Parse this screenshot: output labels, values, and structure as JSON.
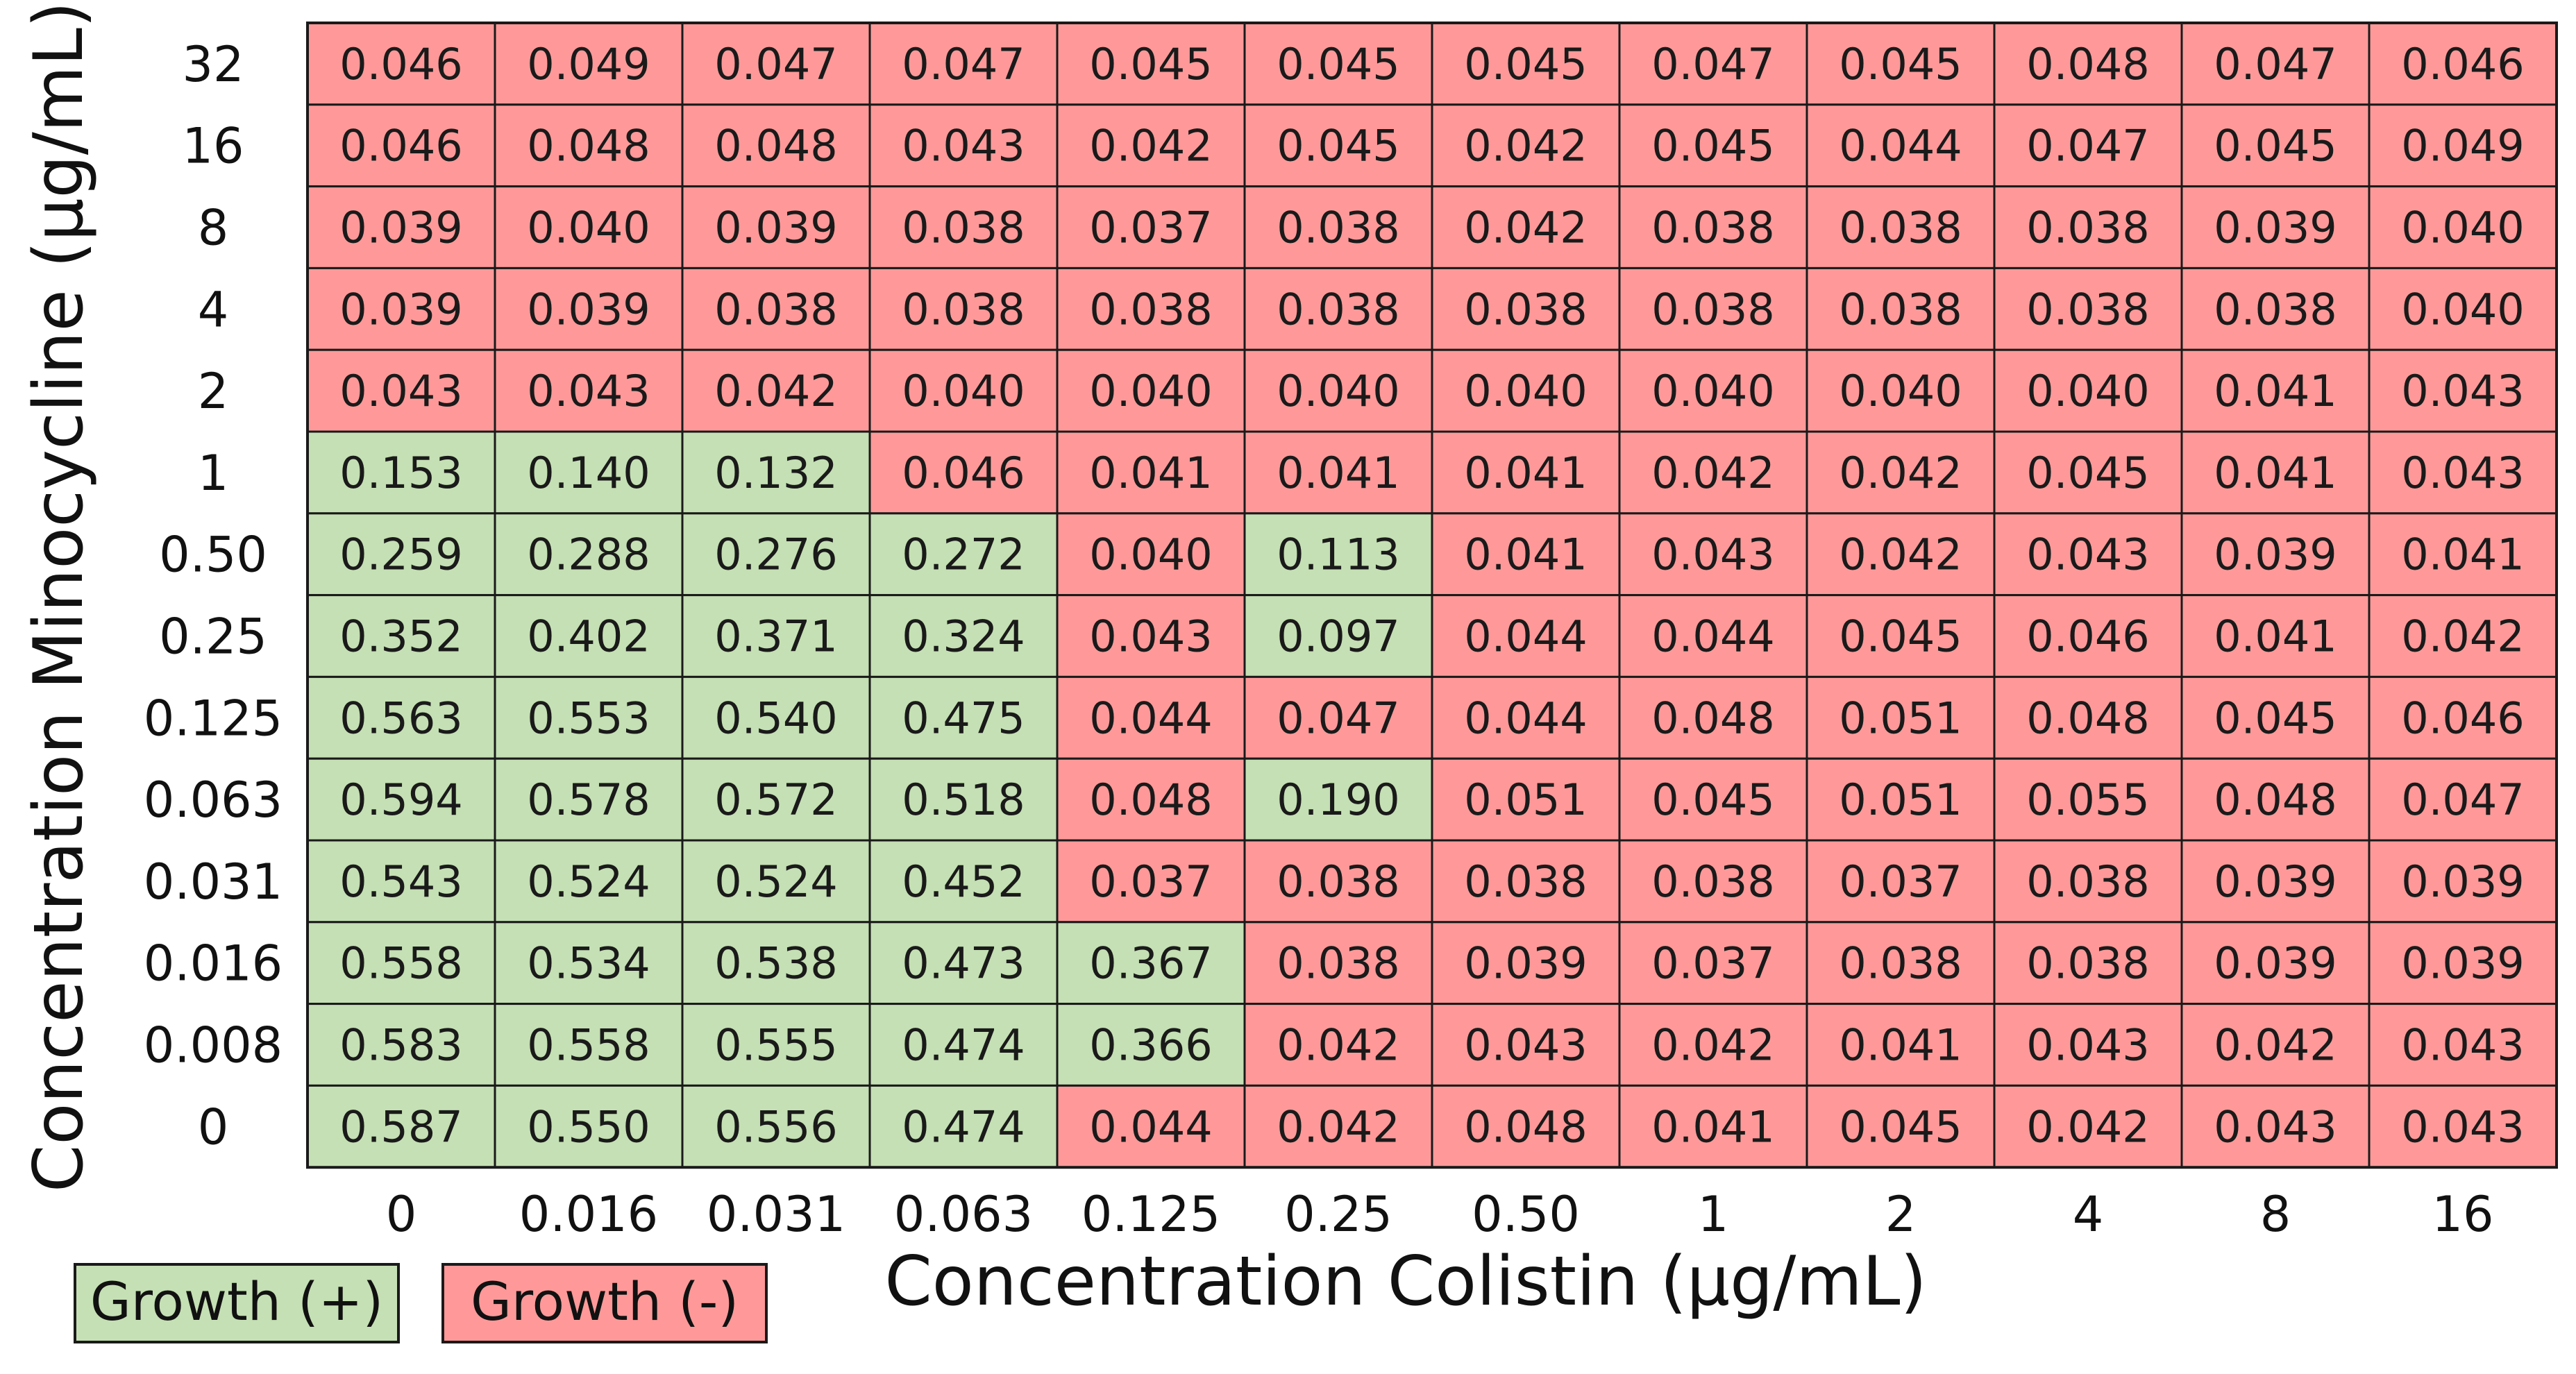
{
  "chart_data": {
    "type": "heatmap",
    "xlabel": "Concentration Colistin (μg/mL)",
    "ylabel": "Concentration Minocycline (μg/mL)",
    "x_categories": [
      "0",
      "0.016",
      "0.031",
      "0.063",
      "0.125",
      "0.25",
      "0.50",
      "1",
      "2",
      "4",
      "8",
      "16"
    ],
    "y_categories": [
      "32",
      "16",
      "8",
      "4",
      "2",
      "1",
      "0.50",
      "0.25",
      "0.125",
      "0.063",
      "0.031",
      "0.016",
      "0.008",
      "0"
    ],
    "values": [
      [
        "0.046",
        "0.049",
        "0.047",
        "0.047",
        "0.045",
        "0.045",
        "0.045",
        "0.047",
        "0.045",
        "0.048",
        "0.047",
        "0.046"
      ],
      [
        "0.046",
        "0.048",
        "0.048",
        "0.043",
        "0.042",
        "0.045",
        "0.042",
        "0.045",
        "0.044",
        "0.047",
        "0.045",
        "0.049"
      ],
      [
        "0.039",
        "0.040",
        "0.039",
        "0.038",
        "0.037",
        "0.038",
        "0.042",
        "0.038",
        "0.038",
        "0.038",
        "0.039",
        "0.040"
      ],
      [
        "0.039",
        "0.039",
        "0.038",
        "0.038",
        "0.038",
        "0.038",
        "0.038",
        "0.038",
        "0.038",
        "0.038",
        "0.038",
        "0.040"
      ],
      [
        "0.043",
        "0.043",
        "0.042",
        "0.040",
        "0.040",
        "0.040",
        "0.040",
        "0.040",
        "0.040",
        "0.040",
        "0.041",
        "0.043"
      ],
      [
        "0.153",
        "0.140",
        "0.132",
        "0.046",
        "0.041",
        "0.041",
        "0.041",
        "0.042",
        "0.042",
        "0.045",
        "0.041",
        "0.043"
      ],
      [
        "0.259",
        "0.288",
        "0.276",
        "0.272",
        "0.040",
        "0.113",
        "0.041",
        "0.043",
        "0.042",
        "0.043",
        "0.039",
        "0.041"
      ],
      [
        "0.352",
        "0.402",
        "0.371",
        "0.324",
        "0.043",
        "0.097",
        "0.044",
        "0.044",
        "0.045",
        "0.046",
        "0.041",
        "0.042"
      ],
      [
        "0.563",
        "0.553",
        "0.540",
        "0.475",
        "0.044",
        "0.047",
        "0.044",
        "0.048",
        "0.051",
        "0.048",
        "0.045",
        "0.046"
      ],
      [
        "0.594",
        "0.578",
        "0.572",
        "0.518",
        "0.048",
        "0.190",
        "0.051",
        "0.045",
        "0.051",
        "0.055",
        "0.048",
        "0.047"
      ],
      [
        "0.543",
        "0.524",
        "0.524",
        "0.452",
        "0.037",
        "0.038",
        "0.038",
        "0.038",
        "0.037",
        "0.038",
        "0.039",
        "0.039"
      ],
      [
        "0.558",
        "0.534",
        "0.538",
        "0.473",
        "0.367",
        "0.038",
        "0.039",
        "0.037",
        "0.038",
        "0.038",
        "0.039",
        "0.039"
      ],
      [
        "0.583",
        "0.558",
        "0.555",
        "0.474",
        "0.366",
        "0.042",
        "0.043",
        "0.042",
        "0.041",
        "0.043",
        "0.042",
        "0.043"
      ],
      [
        "0.587",
        "0.550",
        "0.556",
        "0.474",
        "0.044",
        "0.042",
        "0.048",
        "0.041",
        "0.045",
        "0.042",
        "0.043",
        "0.043"
      ]
    ],
    "growth": [
      [
        0,
        0,
        0,
        0,
        0,
        0,
        0,
        0,
        0,
        0,
        0,
        0
      ],
      [
        0,
        0,
        0,
        0,
        0,
        0,
        0,
        0,
        0,
        0,
        0,
        0
      ],
      [
        0,
        0,
        0,
        0,
        0,
        0,
        0,
        0,
        0,
        0,
        0,
        0
      ],
      [
        0,
        0,
        0,
        0,
        0,
        0,
        0,
        0,
        0,
        0,
        0,
        0
      ],
      [
        0,
        0,
        0,
        0,
        0,
        0,
        0,
        0,
        0,
        0,
        0,
        0
      ],
      [
        1,
        1,
        1,
        0,
        0,
        0,
        0,
        0,
        0,
        0,
        0,
        0
      ],
      [
        1,
        1,
        1,
        1,
        0,
        1,
        0,
        0,
        0,
        0,
        0,
        0
      ],
      [
        1,
        1,
        1,
        1,
        0,
        1,
        0,
        0,
        0,
        0,
        0,
        0
      ],
      [
        1,
        1,
        1,
        1,
        0,
        0,
        0,
        0,
        0,
        0,
        0,
        0
      ],
      [
        1,
        1,
        1,
        1,
        0,
        1,
        0,
        0,
        0,
        0,
        0,
        0
      ],
      [
        1,
        1,
        1,
        1,
        0,
        0,
        0,
        0,
        0,
        0,
        0,
        0
      ],
      [
        1,
        1,
        1,
        1,
        1,
        0,
        0,
        0,
        0,
        0,
        0,
        0
      ],
      [
        1,
        1,
        1,
        1,
        1,
        0,
        0,
        0,
        0,
        0,
        0,
        0
      ],
      [
        1,
        1,
        1,
        1,
        0,
        0,
        0,
        0,
        0,
        0,
        0,
        0
      ]
    ],
    "legend": [
      {
        "label": "Growth (+)",
        "color": "#c5e0b4"
      },
      {
        "label": "Growth (-)",
        "color": "#ff9999"
      }
    ],
    "legend_placement": "bottom-left",
    "colors": {
      "growth_positive": "#c5e0b4",
      "growth_negative": "#ff9999",
      "border": "#1a1a1a"
    }
  }
}
